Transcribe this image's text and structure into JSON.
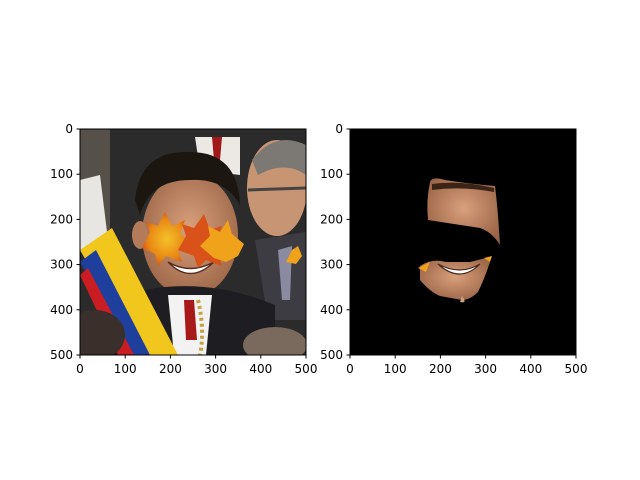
{
  "chart_data": [
    {
      "type": "image",
      "image_content": "photo of a smiling man with a yellow, blue and red sash; autumn maple-leaf shapes cover his eyes and a small part of the right edge",
      "xlim": [
        0,
        500
      ],
      "ylim": [
        500,
        0
      ],
      "xticks": [
        0,
        100,
        200,
        300,
        400,
        500
      ],
      "yticks": [
        0,
        100,
        200,
        300,
        400,
        500
      ],
      "xtick_labels": [
        "0",
        "100",
        "200",
        "300",
        "400",
        "500"
      ],
      "ytick_labels": [
        "0",
        "100",
        "200",
        "300",
        "400",
        "500"
      ],
      "grid": false
    },
    {
      "type": "image",
      "image_content": "mask image: black background with only the face region (forehead and smiling mouth) visible, the eye region cut out",
      "xlim": [
        0,
        500
      ],
      "ylim": [
        500,
        0
      ],
      "xticks": [
        0,
        100,
        200,
        300,
        400,
        500
      ],
      "yticks": [
        0,
        100,
        200,
        300,
        400,
        500
      ],
      "xtick_labels": [
        "0",
        "100",
        "200",
        "300",
        "400",
        "500"
      ],
      "ytick_labels": [
        "0",
        "100",
        "200",
        "300",
        "400",
        "500"
      ],
      "grid": false
    }
  ],
  "colors": {
    "background": "#ffffff",
    "axis": "#000000",
    "mask_background": "#000000"
  }
}
